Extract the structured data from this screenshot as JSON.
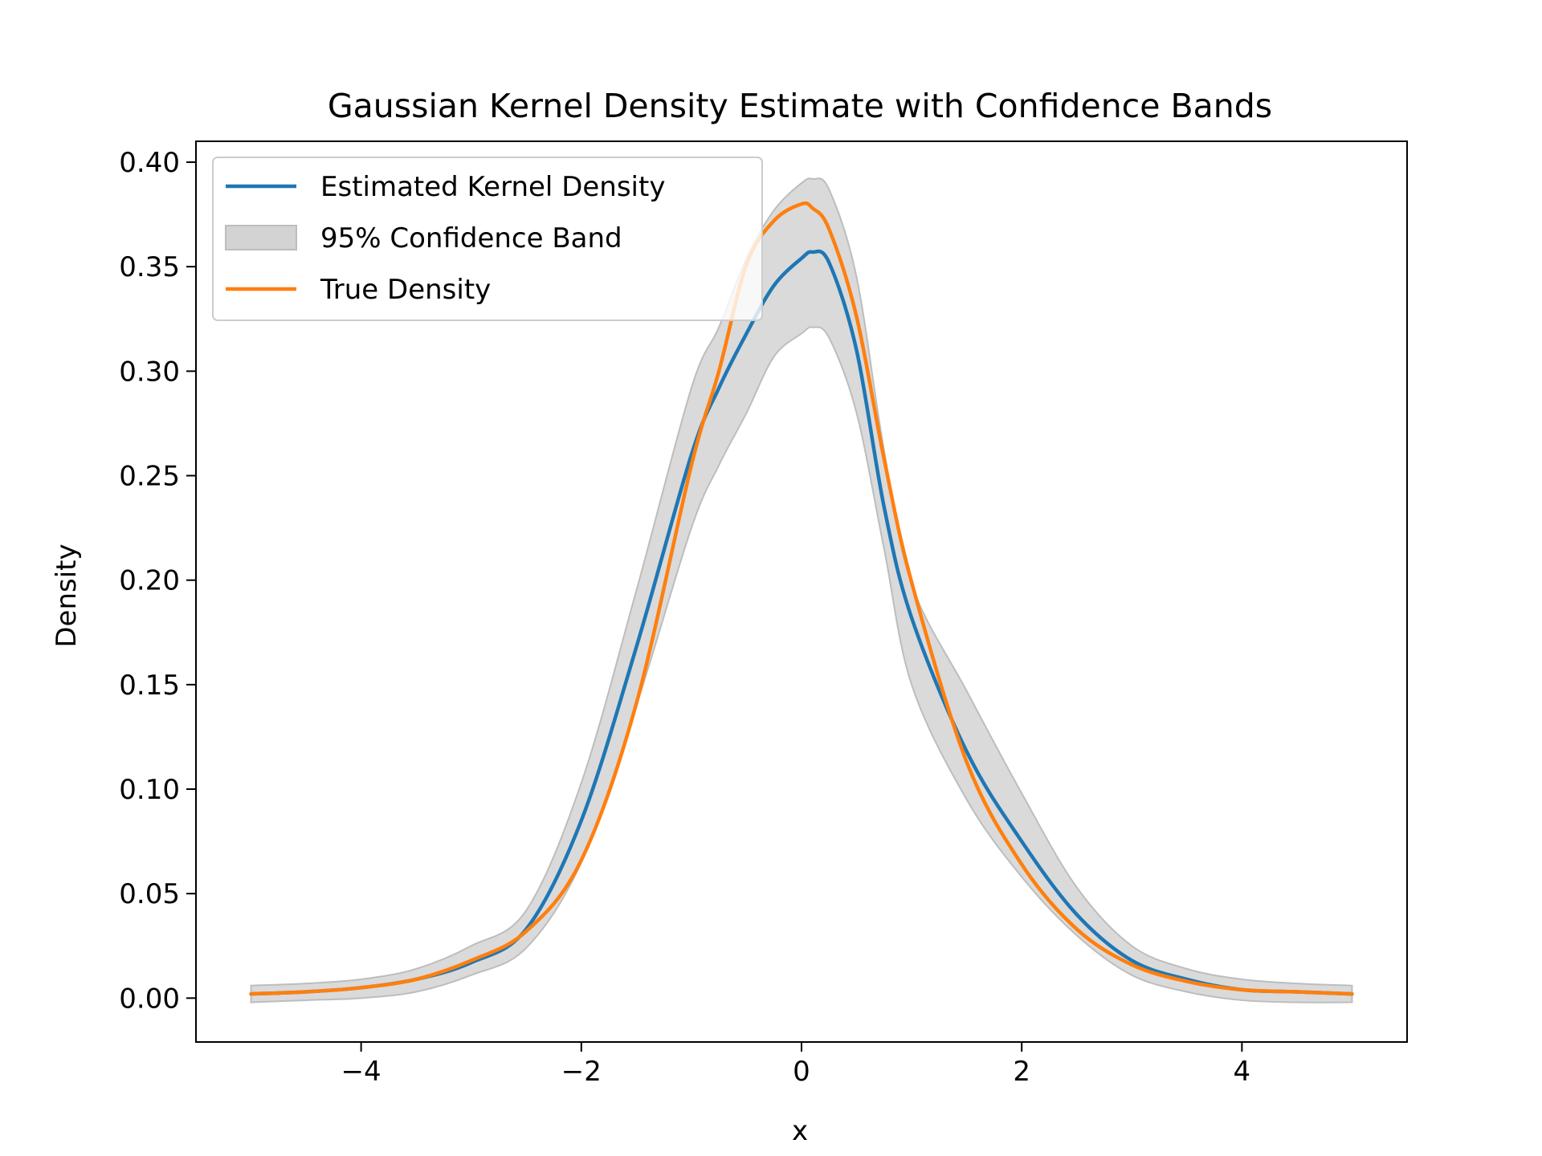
{
  "chart_data": {
    "type": "line",
    "title": "Gaussian Kernel Density Estimate with Confidence Bands",
    "xlabel": "x",
    "ylabel": "Density",
    "xlim": [
      -5.5,
      5.5
    ],
    "ylim": [
      -0.021,
      0.41
    ],
    "x_ticks": [
      -4,
      -2,
      0,
      2,
      4
    ],
    "x_tick_labels": [
      "−4",
      "−2",
      "0",
      "2",
      "4"
    ],
    "y_ticks": [
      0.0,
      0.05,
      0.1,
      0.15,
      0.2,
      0.25,
      0.3,
      0.35,
      0.4
    ],
    "y_tick_labels": [
      "0.00",
      "0.05",
      "0.10",
      "0.15",
      "0.20",
      "0.25",
      "0.30",
      "0.35",
      "0.40"
    ],
    "grid": false,
    "legend_position": "upper-left",
    "x": [
      -5.0,
      -4.5,
      -4.0,
      -3.5,
      -3.0,
      -2.5,
      -2.0,
      -1.5,
      -1.0,
      -0.75,
      -0.5,
      -0.25,
      0.0,
      0.1,
      0.25,
      0.5,
      0.75,
      1.0,
      1.5,
      2.0,
      2.5,
      3.0,
      3.5,
      4.0,
      4.5,
      5.0
    ],
    "series": [
      {
        "name": "Estimated Kernel Density",
        "color": "#1f77b4",
        "values": [
          0.002,
          0.003,
          0.005,
          0.009,
          0.017,
          0.033,
          0.085,
          0.168,
          0.26,
          0.292,
          0.318,
          0.341,
          0.354,
          0.357,
          0.352,
          0.31,
          0.235,
          0.182,
          0.118,
          0.075,
          0.04,
          0.018,
          0.009,
          0.004,
          0.003,
          0.002
        ]
      },
      {
        "name": "True Density",
        "color": "#ff7f0e",
        "values": [
          0.002,
          0.003,
          0.005,
          0.009,
          0.018,
          0.032,
          0.066,
          0.141,
          0.255,
          0.3,
          0.351,
          0.372,
          0.38,
          0.378,
          0.368,
          0.326,
          0.258,
          0.199,
          0.113,
          0.064,
          0.033,
          0.016,
          0.008,
          0.004,
          0.003,
          0.002
        ]
      }
    ],
    "band": {
      "name": "95% Confidence Band",
      "color": "#d3d3d3",
      "edge_color": "#bdbdbd",
      "lower": [
        -0.002,
        -0.001,
        0.0,
        0.003,
        0.011,
        0.024,
        0.065,
        0.14,
        0.225,
        0.255,
        0.28,
        0.307,
        0.318,
        0.321,
        0.316,
        0.28,
        0.215,
        0.15,
        0.095,
        0.058,
        0.03,
        0.011,
        0.003,
        -0.001,
        -0.002,
        -0.002
      ],
      "upper": [
        0.006,
        0.007,
        0.009,
        0.014,
        0.025,
        0.042,
        0.103,
        0.195,
        0.292,
        0.321,
        0.354,
        0.377,
        0.39,
        0.392,
        0.387,
        0.345,
        0.262,
        0.198,
        0.147,
        0.098,
        0.053,
        0.025,
        0.014,
        0.009,
        0.007,
        0.006
      ]
    }
  }
}
